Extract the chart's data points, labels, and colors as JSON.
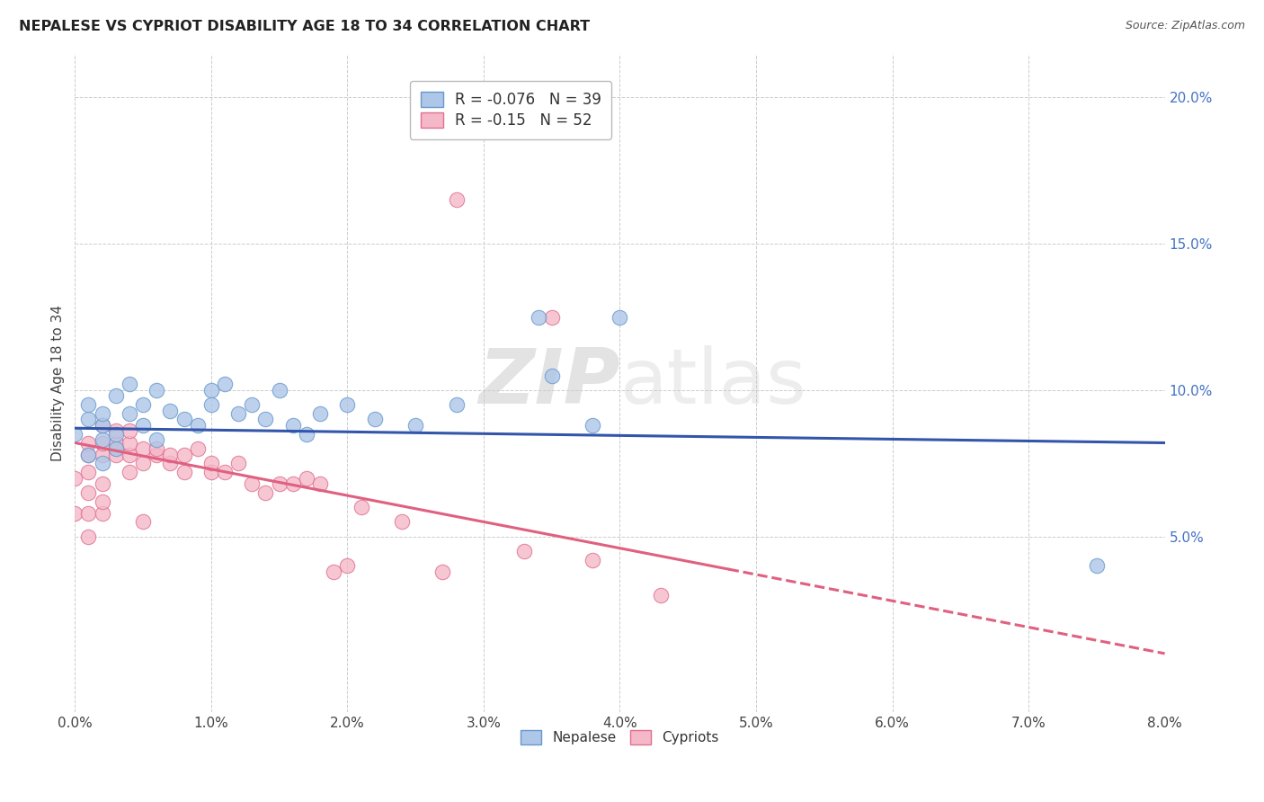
{
  "title": "NEPALESE VS CYPRIOT DISABILITY AGE 18 TO 34 CORRELATION CHART",
  "source": "Source: ZipAtlas.com",
  "ylabel": "Disability Age 18 to 34",
  "xlim": [
    0.0,
    0.08
  ],
  "ylim": [
    -0.01,
    0.215
  ],
  "yticks_right": [
    0.05,
    0.1,
    0.15,
    0.2
  ],
  "ytick_labels_right": [
    "5.0%",
    "10.0%",
    "15.0%",
    "20.0%"
  ],
  "xticks": [
    0.0,
    0.01,
    0.02,
    0.03,
    0.04,
    0.05,
    0.06,
    0.07,
    0.08
  ],
  "xtick_labels": [
    "0.0%",
    "1.0%",
    "2.0%",
    "3.0%",
    "4.0%",
    "5.0%",
    "6.0%",
    "7.0%",
    "8.0%"
  ],
  "nepalese_R": -0.076,
  "nepalese_N": 39,
  "cypriot_R": -0.15,
  "cypriot_N": 52,
  "nepalese_color": "#aec6e8",
  "nepalese_edge": "#6699cc",
  "cypriot_color": "#f5b8c8",
  "cypriot_edge": "#e07090",
  "line_nepalese_color": "#3355aa",
  "line_cypriot_color": "#e06080",
  "grid_color": "#cccccc",
  "watermark_zip": "ZIP",
  "watermark_atlas": "atlas",
  "nepalese_line_x0": 0.0,
  "nepalese_line_y0": 0.087,
  "nepalese_line_x1": 0.08,
  "nepalese_line_y1": 0.082,
  "cypriot_line_x0": 0.0,
  "cypriot_line_y0": 0.082,
  "cypriot_line_solid_end_x": 0.048,
  "cypriot_line_x1": 0.08,
  "cypriot_line_y1": 0.01,
  "nepalese_x": [
    0.0,
    0.001,
    0.001,
    0.001,
    0.002,
    0.002,
    0.002,
    0.002,
    0.003,
    0.003,
    0.003,
    0.004,
    0.004,
    0.005,
    0.005,
    0.006,
    0.006,
    0.007,
    0.008,
    0.009,
    0.01,
    0.01,
    0.011,
    0.012,
    0.013,
    0.014,
    0.015,
    0.016,
    0.017,
    0.018,
    0.02,
    0.022,
    0.025,
    0.028,
    0.035,
    0.038,
    0.04,
    0.075,
    0.034
  ],
  "nepalese_y": [
    0.085,
    0.09,
    0.095,
    0.078,
    0.083,
    0.088,
    0.092,
    0.075,
    0.08,
    0.098,
    0.085,
    0.092,
    0.102,
    0.088,
    0.095,
    0.083,
    0.1,
    0.093,
    0.09,
    0.088,
    0.1,
    0.095,
    0.102,
    0.092,
    0.095,
    0.09,
    0.1,
    0.088,
    0.085,
    0.092,
    0.095,
    0.09,
    0.088,
    0.095,
    0.105,
    0.088,
    0.125,
    0.04,
    0.125
  ],
  "cypriot_x": [
    0.0,
    0.0,
    0.001,
    0.001,
    0.001,
    0.001,
    0.001,
    0.001,
    0.002,
    0.002,
    0.002,
    0.002,
    0.002,
    0.002,
    0.003,
    0.003,
    0.003,
    0.003,
    0.004,
    0.004,
    0.004,
    0.004,
    0.005,
    0.005,
    0.005,
    0.006,
    0.006,
    0.007,
    0.007,
    0.008,
    0.008,
    0.009,
    0.01,
    0.01,
    0.011,
    0.012,
    0.013,
    0.014,
    0.015,
    0.016,
    0.017,
    0.018,
    0.019,
    0.02,
    0.021,
    0.024,
    0.027,
    0.033,
    0.038,
    0.043,
    0.035,
    0.028
  ],
  "cypriot_y": [
    0.07,
    0.058,
    0.072,
    0.065,
    0.078,
    0.082,
    0.058,
    0.05,
    0.078,
    0.082,
    0.088,
    0.058,
    0.062,
    0.068,
    0.08,
    0.078,
    0.082,
    0.086,
    0.072,
    0.078,
    0.082,
    0.086,
    0.075,
    0.08,
    0.055,
    0.078,
    0.08,
    0.075,
    0.078,
    0.072,
    0.078,
    0.08,
    0.072,
    0.075,
    0.072,
    0.075,
    0.068,
    0.065,
    0.068,
    0.068,
    0.07,
    0.068,
    0.038,
    0.04,
    0.06,
    0.055,
    0.038,
    0.045,
    0.042,
    0.03,
    0.125,
    0.165
  ]
}
